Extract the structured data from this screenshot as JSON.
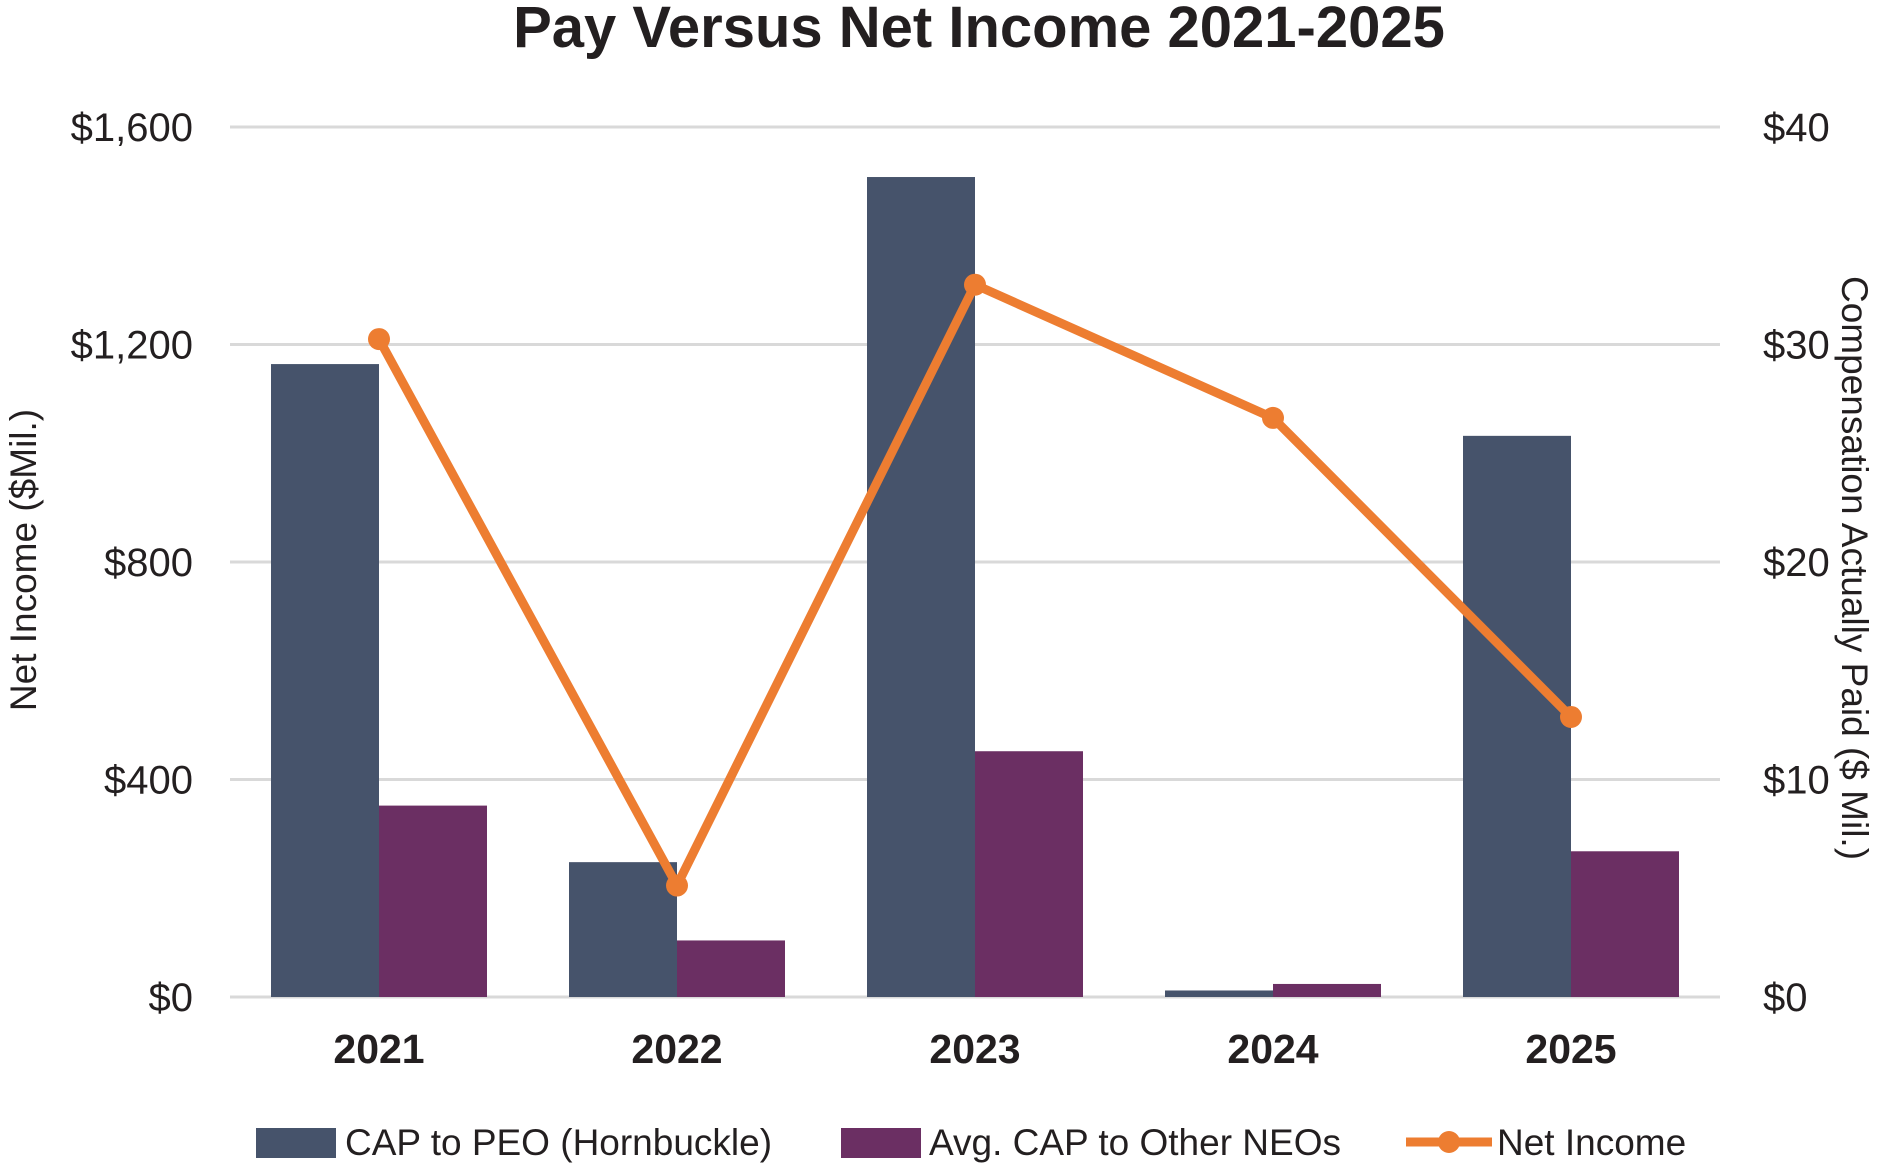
{
  "chart_data": {
    "type": "bar",
    "title": "Pay Versus Net Income 2021-2025",
    "categories": [
      "2021",
      "2022",
      "2023",
      "2024",
      "2025"
    ],
    "left_axis": {
      "label": "Net Income ($Mil.)",
      "ylim": [
        0,
        1600
      ],
      "ticks": [
        0,
        400,
        800,
        1200,
        1600
      ],
      "tick_labels": [
        "$0",
        "$400",
        "$800",
        "$1,200",
        "$1,600"
      ]
    },
    "right_axis": {
      "label": "Compensation Actually Paid ($ Mil.)",
      "ylim": [
        0,
        40
      ],
      "ticks": [
        0,
        10,
        20,
        30,
        40
      ],
      "tick_labels": [
        "$0",
        "$10",
        "$20",
        "$30",
        "$40"
      ]
    },
    "series": [
      {
        "name": "CAP to PEO (Hornbuckle)",
        "type": "bar",
        "axis": "right",
        "color": "#46536b",
        "values": [
          29.1,
          6.2,
          37.7,
          0.3,
          25.8
        ]
      },
      {
        "name": "Avg. CAP to Other NEOs",
        "type": "bar",
        "axis": "right",
        "color": "#6b2f63",
        "values": [
          8.8,
          2.6,
          11.3,
          0.6,
          6.7
        ]
      },
      {
        "name": "Net Income",
        "type": "line",
        "axis": "left",
        "color": "#ed7d31",
        "values": [
          1210,
          205,
          1310,
          1065,
          515
        ]
      }
    ],
    "grid": true,
    "legend_position": "bottom"
  }
}
